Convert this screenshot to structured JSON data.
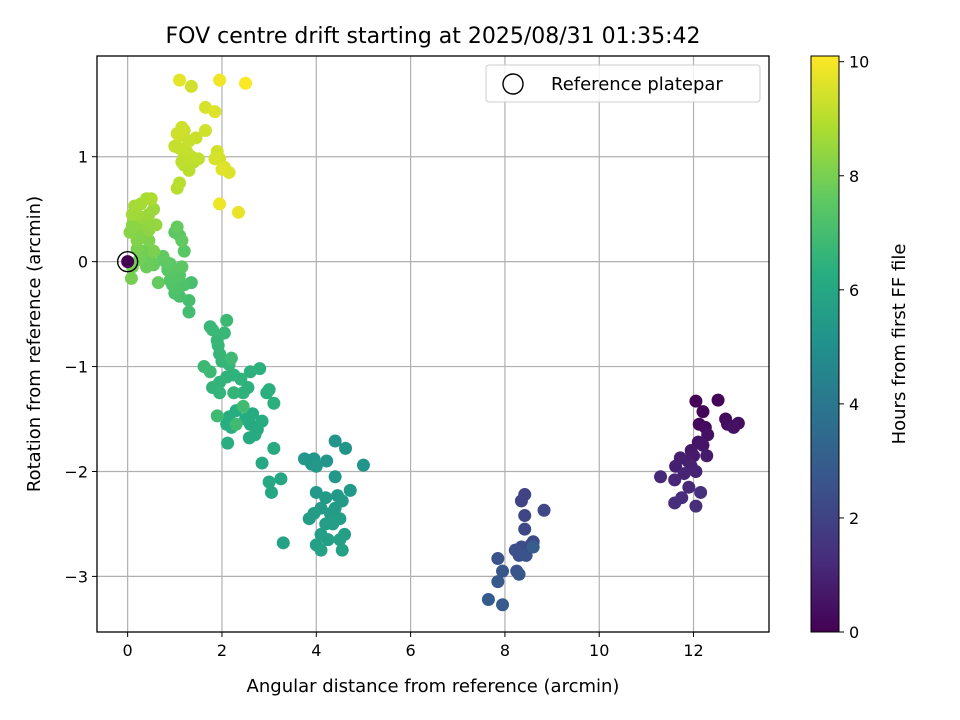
{
  "chart_data": {
    "type": "scatter",
    "title": "FOV centre drift starting at 2025/08/31 01:35:42",
    "xlabel": "Angular distance from reference (arcmin)",
    "ylabel": "Rotation from reference (arcmin)",
    "xlim": [
      -0.65,
      13.6
    ],
    "ylim": [
      -3.53,
      1.96
    ],
    "xticks": [
      0,
      2,
      4,
      6,
      8,
      10,
      12
    ],
    "yticks": [
      -3,
      -2,
      -1,
      0,
      1
    ],
    "grid": true,
    "legend": {
      "position": "top-right",
      "entries": [
        "Reference platepar"
      ]
    },
    "colorbar": {
      "label": "Hours from first FF file",
      "range": [
        0,
        10.1
      ],
      "ticks": [
        0,
        2,
        4,
        6,
        8,
        10
      ],
      "colormap": "viridis"
    },
    "reference_point": {
      "x": 0,
      "y": 0
    },
    "series": [
      {
        "points": [
          [
            12.05,
            -1.33
          ],
          [
            12.52,
            -1.32
          ],
          [
            12.2,
            -1.43
          ],
          [
            12.12,
            -1.55
          ],
          [
            12.25,
            -1.58
          ],
          [
            12.68,
            -1.5
          ],
          [
            12.72,
            -1.55
          ],
          [
            12.95,
            -1.54
          ],
          [
            12.85,
            -1.58
          ],
          [
            12.3,
            -1.65
          ],
          [
            12.1,
            -1.72
          ],
          [
            12.2,
            -1.75
          ],
          [
            11.95,
            -1.8
          ],
          [
            12.0,
            -1.85
          ],
          [
            12.28,
            -1.85
          ],
          [
            11.88,
            -1.9
          ],
          [
            11.72,
            -1.87
          ],
          [
            11.62,
            -1.95
          ],
          [
            11.95,
            -1.95
          ],
          [
            12.05,
            -2.0
          ],
          [
            11.8,
            -2.02
          ],
          [
            11.6,
            -2.08
          ],
          [
            11.3,
            -2.05
          ],
          [
            11.9,
            -2.15
          ],
          [
            11.75,
            -2.25
          ],
          [
            11.6,
            -2.3
          ],
          [
            12.05,
            -2.33
          ],
          [
            12.15,
            -2.2
          ]
        ],
        "hours": [
          0.05,
          0.1,
          0.15,
          0.2,
          0.25,
          0.3,
          0.35,
          0.4,
          0.45,
          0.5,
          0.55,
          0.6,
          0.65,
          0.7,
          0.75,
          0.8,
          0.85,
          0.9,
          0.95,
          1.0,
          1.05,
          1.1,
          1.15,
          1.2,
          1.25,
          1.3,
          1.35,
          1.4
        ]
      },
      {
        "points": [
          [
            8.42,
            -2.22
          ],
          [
            8.35,
            -2.28
          ],
          [
            8.42,
            -2.42
          ],
          [
            8.83,
            -2.37
          ],
          [
            8.42,
            -2.55
          ],
          [
            8.6,
            -2.67
          ],
          [
            8.55,
            -2.7
          ],
          [
            8.35,
            -2.72
          ],
          [
            8.45,
            -2.75
          ],
          [
            8.22,
            -2.75
          ],
          [
            8.3,
            -2.8
          ],
          [
            8.45,
            -2.8
          ],
          [
            7.85,
            -2.83
          ],
          [
            8.25,
            -2.95
          ],
          [
            8.3,
            -2.98
          ],
          [
            7.95,
            -2.95
          ],
          [
            7.85,
            -3.05
          ],
          [
            7.65,
            -3.22
          ],
          [
            7.95,
            -3.27
          ],
          [
            8.6,
            -2.72
          ]
        ],
        "hours": [
          2.0,
          2.05,
          2.1,
          2.15,
          2.2,
          2.25,
          2.3,
          2.35,
          2.4,
          2.45,
          2.5,
          2.55,
          2.6,
          2.65,
          2.7,
          2.75,
          2.8,
          2.85,
          2.9,
          2.95
        ]
      },
      {
        "points": [
          [
            4.4,
            -1.71
          ],
          [
            4.62,
            -1.78
          ],
          [
            5.0,
            -1.94
          ],
          [
            4.22,
            -1.9
          ],
          [
            3.95,
            -1.88
          ],
          [
            3.75,
            -1.88
          ],
          [
            3.9,
            -1.93
          ],
          [
            4.0,
            -1.95
          ],
          [
            4.4,
            -2.05
          ],
          [
            4.72,
            -2.18
          ],
          [
            4.0,
            -2.2
          ],
          [
            4.2,
            -2.25
          ],
          [
            4.45,
            -2.23
          ],
          [
            4.55,
            -2.28
          ],
          [
            4.1,
            -2.35
          ],
          [
            4.4,
            -2.35
          ],
          [
            4.3,
            -2.4
          ],
          [
            3.95,
            -2.4
          ],
          [
            3.85,
            -2.45
          ],
          [
            4.5,
            -2.45
          ],
          [
            4.2,
            -2.5
          ],
          [
            4.35,
            -2.5
          ],
          [
            4.6,
            -2.6
          ],
          [
            4.1,
            -2.6
          ],
          [
            4.25,
            -2.65
          ],
          [
            4.5,
            -2.65
          ],
          [
            4.0,
            -2.7
          ],
          [
            4.1,
            -2.75
          ],
          [
            4.55,
            -2.75
          ],
          [
            3.3,
            -2.68
          ]
        ],
        "hours": [
          5.2,
          5.22,
          5.24,
          5.26,
          5.28,
          5.3,
          5.32,
          5.34,
          5.36,
          5.38,
          5.4,
          5.42,
          5.44,
          5.46,
          5.48,
          5.5,
          5.52,
          5.54,
          5.56,
          5.58,
          5.6,
          5.62,
          5.64,
          5.66,
          5.68,
          5.7,
          5.72,
          5.74,
          5.76,
          5.78
        ]
      },
      {
        "points": [
          [
            3.05,
            -2.2
          ],
          [
            3.25,
            -2.07
          ],
          [
            3.0,
            -2.1
          ],
          [
            2.85,
            -1.92
          ],
          [
            3.1,
            -1.78
          ],
          [
            2.7,
            -1.65
          ],
          [
            2.75,
            -1.6
          ],
          [
            2.58,
            -1.68
          ],
          [
            2.6,
            -1.55
          ],
          [
            2.85,
            -1.52
          ],
          [
            2.65,
            -1.45
          ],
          [
            2.5,
            -1.5
          ],
          [
            2.3,
            -1.42
          ],
          [
            2.15,
            -1.48
          ],
          [
            2.1,
            -1.55
          ],
          [
            2.2,
            -1.58
          ],
          [
            2.12,
            -1.73
          ],
          [
            2.95,
            -1.25
          ],
          [
            3.1,
            -1.35
          ],
          [
            3.0,
            -1.22
          ],
          [
            2.8,
            -1.02
          ],
          [
            2.6,
            -1.05
          ],
          [
            2.55,
            -1.2
          ],
          [
            2.45,
            -1.25
          ],
          [
            2.4,
            -1.12
          ],
          [
            2.25,
            -1.08
          ],
          [
            2.1,
            -1.1
          ],
          [
            1.95,
            -1.15
          ],
          [
            1.8,
            -1.2
          ],
          [
            1.95,
            -1.25
          ],
          [
            2.25,
            -1.25
          ],
          [
            2.15,
            -0.98
          ],
          [
            2.0,
            -0.95
          ],
          [
            1.95,
            -0.88
          ],
          [
            1.92,
            -0.8
          ],
          [
            1.9,
            -0.75
          ],
          [
            2.05,
            -0.68
          ],
          [
            1.75,
            -0.62
          ],
          [
            1.8,
            -0.65
          ],
          [
            2.1,
            -0.56
          ],
          [
            1.62,
            -1.0
          ],
          [
            1.75,
            -1.05
          ],
          [
            2.2,
            -0.92
          ],
          [
            1.9,
            -1.47
          ],
          [
            2.3,
            -1.55
          ],
          [
            2.45,
            -1.38
          ]
        ],
        "hours": [
          6.0,
          6.02,
          6.04,
          6.06,
          6.08,
          6.1,
          6.12,
          6.14,
          6.16,
          6.18,
          6.2,
          6.22,
          6.24,
          6.26,
          6.28,
          6.3,
          6.32,
          6.34,
          6.36,
          6.38,
          6.4,
          6.42,
          6.44,
          6.46,
          6.48,
          6.5,
          6.52,
          6.54,
          6.56,
          6.58,
          6.6,
          6.62,
          6.64,
          6.66,
          6.68,
          6.7,
          6.72,
          6.74,
          6.76,
          6.78,
          6.8,
          6.82,
          6.84,
          6.86,
          6.88,
          6.9
        ]
      },
      {
        "points": [
          [
            1.3,
            -0.48
          ],
          [
            1.3,
            -0.37
          ],
          [
            1.35,
            -0.2
          ],
          [
            1.1,
            -0.33
          ],
          [
            1.0,
            -0.3
          ],
          [
            1.2,
            -0.22
          ],
          [
            1.05,
            -0.25
          ],
          [
            0.95,
            -0.22
          ],
          [
            0.9,
            -0.18
          ],
          [
            1.1,
            -0.13
          ],
          [
            0.95,
            -0.1
          ],
          [
            0.85,
            -0.08
          ],
          [
            1.15,
            -0.05
          ],
          [
            0.9,
            -0.02
          ],
          [
            0.8,
            0.0
          ],
          [
            0.75,
            0.05
          ],
          [
            0.65,
            -0.2
          ],
          [
            0.55,
            -0.03
          ],
          [
            0.5,
            0.0
          ],
          [
            0.45,
            0.05
          ],
          [
            0.4,
            -0.05
          ],
          [
            0.35,
            0.1
          ],
          [
            0.25,
            0.02
          ],
          [
            0.1,
            -0.05
          ],
          [
            0.08,
            -0.16
          ],
          [
            0.2,
            0.12
          ],
          [
            0.55,
            0.1
          ],
          [
            0.45,
            0.2
          ],
          [
            0.3,
            0.25
          ],
          [
            0.2,
            0.2
          ],
          [
            0.15,
            0.3
          ],
          [
            0.05,
            0.28
          ],
          [
            0.1,
            0.35
          ],
          [
            0.25,
            0.35
          ],
          [
            0.45,
            0.3
          ],
          [
            0.5,
            0.35
          ],
          [
            0.6,
            0.35
          ],
          [
            0.3,
            0.42
          ],
          [
            0.45,
            0.45
          ],
          [
            0.55,
            0.5
          ],
          [
            0.2,
            0.45
          ],
          [
            0.1,
            0.45
          ],
          [
            0.15,
            0.53
          ],
          [
            0.28,
            0.55
          ],
          [
            0.4,
            0.6
          ],
          [
            0.5,
            0.6
          ],
          [
            1.0,
            0.28
          ],
          [
            1.1,
            0.25
          ],
          [
            1.2,
            0.1
          ],
          [
            1.15,
            0.2
          ],
          [
            1.05,
            0.33
          ]
        ],
        "hours": [
          7.0,
          7.04,
          7.08,
          7.12,
          7.16,
          7.2,
          7.24,
          7.28,
          7.32,
          7.36,
          7.4,
          7.44,
          7.48,
          7.52,
          7.56,
          7.6,
          7.64,
          7.68,
          7.72,
          7.76,
          7.8,
          7.84,
          7.88,
          7.92,
          7.96,
          8.0,
          8.04,
          8.08,
          8.12,
          8.16,
          8.2,
          8.24,
          8.28,
          8.32,
          8.36,
          8.4,
          8.44,
          8.48,
          8.52,
          8.56,
          8.6,
          8.64,
          8.68,
          8.72,
          8.76,
          8.8,
          7.5,
          7.55,
          7.45,
          7.6,
          7.65
        ]
      },
      {
        "points": [
          [
            1.05,
            0.7
          ],
          [
            1.1,
            0.75
          ],
          [
            1.2,
            0.92
          ],
          [
            1.3,
            0.87
          ],
          [
            1.15,
            0.95
          ],
          [
            1.4,
            0.95
          ],
          [
            1.2,
            1.0
          ],
          [
            1.35,
            1.0
          ],
          [
            1.5,
            0.98
          ],
          [
            1.25,
            1.05
          ],
          [
            1.1,
            1.08
          ],
          [
            1.0,
            1.1
          ],
          [
            1.3,
            1.15
          ],
          [
            1.45,
            1.18
          ],
          [
            1.1,
            1.2
          ],
          [
            1.2,
            1.25
          ],
          [
            1.05,
            1.22
          ],
          [
            1.15,
            1.28
          ],
          [
            1.65,
            1.25
          ],
          [
            1.9,
            1.05
          ],
          [
            1.95,
            0.98
          ],
          [
            1.85,
            0.98
          ],
          [
            2.05,
            0.9
          ],
          [
            2.15,
            0.85
          ],
          [
            2.0,
            0.88
          ],
          [
            2.35,
            0.47
          ],
          [
            1.95,
            0.55
          ],
          [
            1.65,
            1.47
          ],
          [
            1.85,
            1.43
          ],
          [
            1.35,
            1.67
          ],
          [
            1.1,
            1.73
          ],
          [
            1.95,
            1.73
          ],
          [
            2.5,
            1.7
          ]
        ],
        "hours": [
          9.0,
          9.02,
          9.04,
          9.06,
          9.08,
          9.1,
          9.12,
          9.14,
          9.16,
          9.18,
          9.2,
          9.22,
          9.24,
          9.26,
          9.28,
          9.3,
          9.32,
          9.34,
          9.36,
          9.4,
          9.45,
          9.5,
          9.55,
          9.6,
          9.65,
          9.8,
          9.85,
          9.5,
          9.6,
          9.4,
          9.7,
          9.9,
          10.05
        ]
      }
    ]
  }
}
